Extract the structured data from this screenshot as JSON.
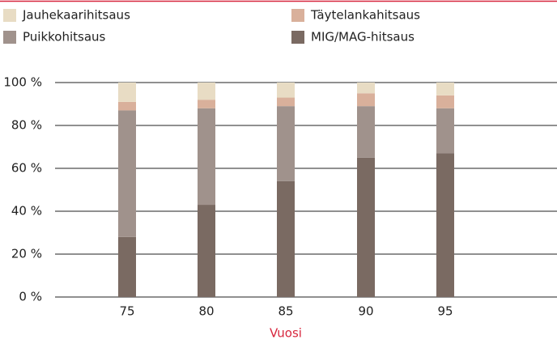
{
  "chart_data": {
    "type": "stacked_bar",
    "categories": [
      "75",
      "80",
      "85",
      "90",
      "95"
    ],
    "series": [
      {
        "name": "MIG/MAG-hitsaus",
        "color": "#7a6a62",
        "values": [
          28,
          43,
          54,
          65,
          67
        ]
      },
      {
        "name": "Puikkohitsaus",
        "color": "#a0928c",
        "values": [
          59,
          45,
          35,
          24,
          21
        ]
      },
      {
        "name": "Täytelankahitsaus",
        "color": "#d9b09b",
        "values": [
          4,
          4,
          4,
          6,
          6
        ]
      },
      {
        "name": "Jauhekaarihitsaus",
        "color": "#e8dcc4",
        "values": [
          9,
          8,
          7,
          5,
          6
        ]
      }
    ],
    "x_label": "Vuosi",
    "ylim": [
      0,
      100
    ],
    "yticks": [
      {
        "value": 0,
        "label": "0 %"
      },
      {
        "value": 20,
        "label": "20 %"
      },
      {
        "value": 40,
        "label": "40 %"
      },
      {
        "value": 60,
        "label": "60 %"
      },
      {
        "value": 80,
        "label": "80 %"
      },
      {
        "value": 100,
        "label": "100 %"
      }
    ],
    "grid": true
  }
}
